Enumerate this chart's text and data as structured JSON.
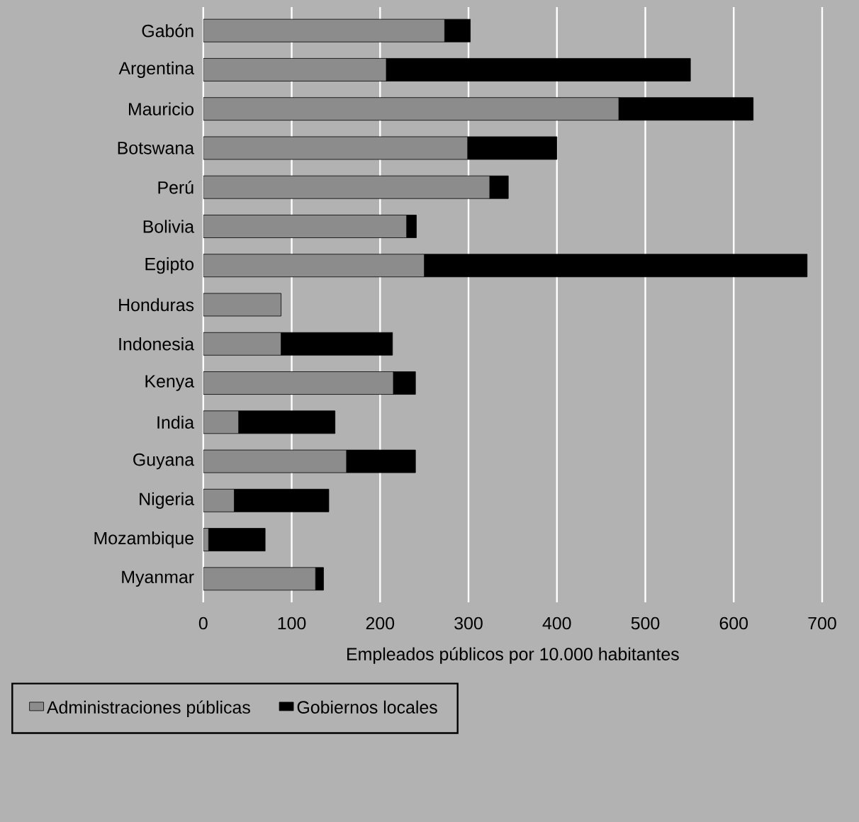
{
  "chart_data": {
    "type": "bar",
    "orientation": "horizontal",
    "stacked": true,
    "xlabel": "Empleados públicos por 10.000 habitantes",
    "categories": [
      "Gabón",
      "Argentina",
      "Mauricio",
      "Botswana",
      "Perú",
      "Bolivia",
      "Egipto",
      "Honduras",
      "Indonesia",
      "Kenya",
      "India",
      "Guyana",
      "Nigeria",
      "Mozambique",
      "Myanmar"
    ],
    "series": [
      {
        "name": "Administraciones públicas",
        "color": "#8c8c8c",
        "values": [
          273,
          207,
          470,
          299,
          324,
          230,
          250,
          88,
          88,
          215,
          40,
          162,
          35,
          6,
          127
        ]
      },
      {
        "name": "Gobiernos locales",
        "color": "#000000",
        "values": [
          29,
          344,
          152,
          101,
          21,
          11,
          433,
          0,
          126,
          25,
          109,
          78,
          107,
          64,
          9
        ]
      }
    ],
    "xlim": [
      0,
      700
    ],
    "xticks": [
      0,
      100,
      200,
      300,
      400,
      500,
      600,
      700
    ],
    "grid": "x",
    "legend": "bottom"
  }
}
